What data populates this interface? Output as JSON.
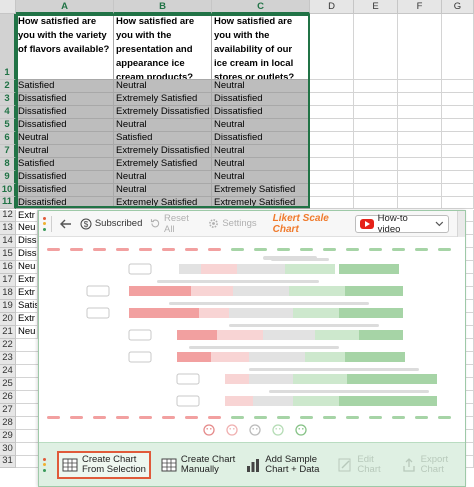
{
  "sheet": {
    "columns": [
      "A",
      "B",
      "C",
      "D",
      "E",
      "F",
      "G"
    ],
    "rows": [
      "1",
      "2",
      "3",
      "4",
      "5",
      "6",
      "7",
      "8",
      "9",
      "10",
      "11",
      "12",
      "13",
      "14",
      "15",
      "16",
      "17",
      "18",
      "19",
      "20",
      "21",
      "22",
      "23",
      "24",
      "25",
      "26",
      "27",
      "28",
      "29",
      "30",
      "31"
    ],
    "headers": [
      "How satisfied are you with the variety of flavors available?",
      "How satisfied are you with the presentation and appearance ice cream products?",
      "How satisfied are you with the availability of our ice cream in local stores or outlets?"
    ],
    "data": [
      [
        "Satisfied",
        "Neutral",
        "Neutral"
      ],
      [
        "Dissatisfied",
        "Extremely Satisfied",
        "Dissatisfied"
      ],
      [
        "Dissatisfied",
        "Extremely Dissatisfied",
        "Dissatisfied"
      ],
      [
        "Dissatisfied",
        "Neutral",
        "Neutral"
      ],
      [
        "Neutral",
        "Satisfied",
        "Dissatisfied"
      ],
      [
        "Neutral",
        "Extremely Dissatisfied",
        "Neutral"
      ],
      [
        "Satisfied",
        "Extremely Satisfied",
        "Neutral"
      ],
      [
        "Dissatisfied",
        "Neutral",
        "Neutral"
      ],
      [
        "Dissatisfied",
        "Neutral",
        "Extremely Satisfied"
      ],
      [
        "Dissatisfied",
        "Extremely Satisfied",
        "Extremely Satisfied"
      ]
    ],
    "partial_col_a": [
      "Extr",
      "Neu",
      "Diss",
      "Diss",
      "Neu",
      "Extr",
      "Extr",
      "Satis",
      "Extr",
      "Neu"
    ]
  },
  "pane": {
    "toolbar": {
      "subscribed": "Subscribed",
      "reset_all": "Reset All",
      "settings": "Settings",
      "chart_title": "Likert Scale Chart",
      "howto": "How-to video"
    },
    "legend_icons": [
      "very-sad",
      "sad",
      "neutral",
      "happy",
      "very-happy"
    ],
    "buttons": {
      "create_selection": [
        "Create Chart",
        "From Selection"
      ],
      "create_manual": [
        "Create Chart",
        "Manually"
      ],
      "sample": [
        "Add Sample",
        "Chart + Data"
      ],
      "edit": [
        "Edit",
        "Chart"
      ],
      "export": [
        "Export",
        "Chart"
      ]
    },
    "colors": {
      "accent": "#f07a2c",
      "green_bg": "#dff0e3",
      "red_strong": "#f2a0a0",
      "red_light": "#f8d4d4",
      "neutral": "#e2e2e2",
      "green_light": "#cde8cd",
      "green_strong": "#a6d4a6",
      "selected_cells": "#bdbdbd"
    }
  }
}
